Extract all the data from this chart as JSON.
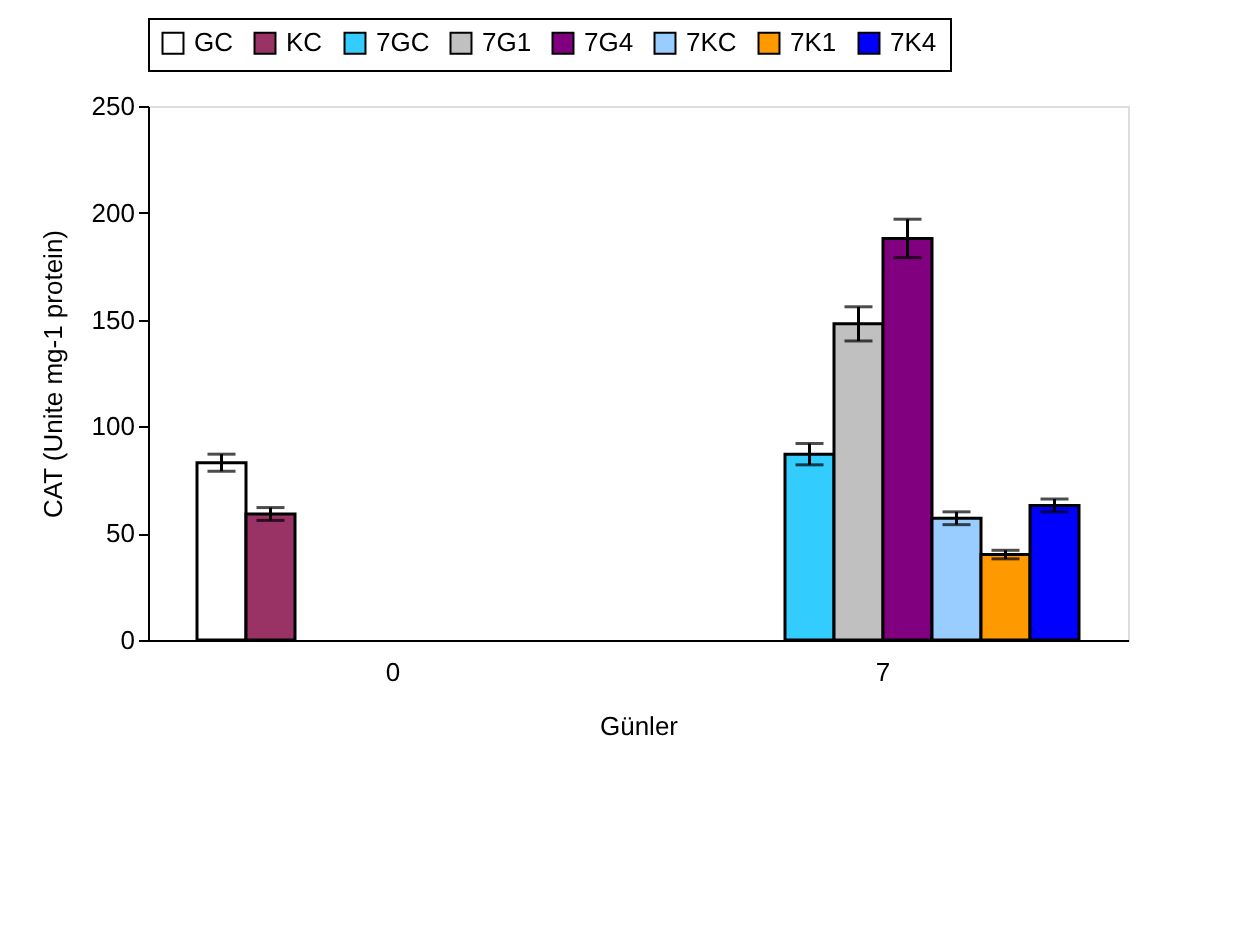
{
  "chart_data": {
    "type": "bar",
    "xlabel": "Günler",
    "ylabel": "CAT (Unite mg-1 protein)",
    "categories": [
      "0",
      "7"
    ],
    "series": [
      {
        "name": "GC",
        "color": "#ffffff",
        "values": [
          83,
          null
        ],
        "errors": [
          4,
          null
        ]
      },
      {
        "name": "KC",
        "color": "#993366",
        "values": [
          59,
          null
        ],
        "errors": [
          3,
          null
        ]
      },
      {
        "name": "7GC",
        "color": "#33ccff",
        "values": [
          null,
          87
        ],
        "errors": [
          null,
          5
        ]
      },
      {
        "name": "7G1",
        "color": "#c0c0c0",
        "values": [
          null,
          148
        ],
        "errors": [
          null,
          8
        ]
      },
      {
        "name": "7G4",
        "color": "#800080",
        "values": [
          null,
          188
        ],
        "errors": [
          null,
          9
        ]
      },
      {
        "name": "7KC",
        "color": "#99ccff",
        "values": [
          null,
          57
        ],
        "errors": [
          null,
          3
        ]
      },
      {
        "name": "7K1",
        "color": "#ff9900",
        "values": [
          null,
          40
        ],
        "errors": [
          null,
          2
        ]
      },
      {
        "name": "7K4",
        "color": "#0000ff",
        "values": [
          null,
          63
        ],
        "errors": [
          null,
          3
        ]
      }
    ],
    "ylim": [
      0,
      250
    ],
    "yticks": [
      0,
      50,
      100,
      150,
      200,
      250
    ],
    "grid": false,
    "legend": "top"
  }
}
